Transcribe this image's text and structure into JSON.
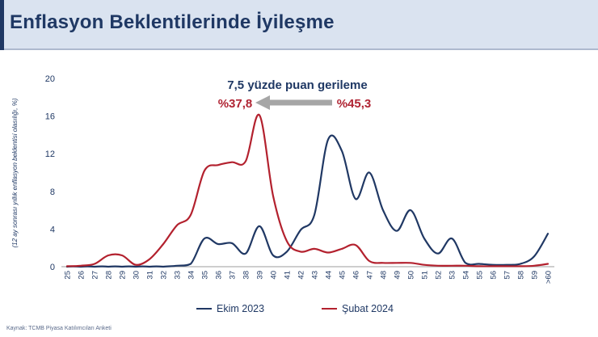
{
  "header": {
    "title": "Enflasyon Beklentilerinde İyileşme"
  },
  "annotation": {
    "headline": "7,5 yüzde puan gerileme",
    "left_value": "%37,8",
    "right_value": "%45,3"
  },
  "source": "Kaynak: TCMB Piyasa Katılımcıları Anketi",
  "colors": {
    "navy": "#1f3864",
    "red": "#b02433",
    "arrow_gray": "#a6a6a6",
    "header_bg": "#dae3f0",
    "axis_gray": "#b0b0b0"
  },
  "chart_data": {
    "type": "line",
    "title": "Enflasyon Beklentilerinde İyileşme",
    "xlabel": "",
    "ylabel": "(12 ay sonrası yıllık enflasyon beklentisi olasılığı, %)",
    "ylim": [
      0,
      20
    ],
    "yticks": [
      0,
      4,
      8,
      12,
      16,
      20
    ],
    "grid": false,
    "legend_position": "bottom",
    "categories": [
      "25",
      "26",
      "27",
      "28",
      "29",
      "30",
      "31",
      "32",
      "33",
      "34",
      "35",
      "36",
      "37",
      "38",
      "39",
      "40",
      "41",
      "42",
      "43",
      "44",
      "45",
      "46",
      "47",
      "48",
      "49",
      "50",
      "51",
      "52",
      "53",
      "54",
      "55",
      "56",
      "57",
      "58",
      "59",
      ">60"
    ],
    "series": [
      {
        "name": "Ekim 2023",
        "color": "#203864",
        "values": [
          0,
          0,
          0,
          0,
          0,
          0,
          0,
          0,
          0.1,
          0.3,
          3.0,
          2.4,
          2.5,
          1.4,
          4.3,
          1.2,
          1.6,
          3.9,
          5.5,
          13.5,
          12.3,
          7.2,
          10.0,
          6.0,
          3.8,
          6.0,
          3.0,
          1.4,
          3.0,
          0.4,
          0.3,
          0.2,
          0.2,
          0.3,
          1.1,
          3.5
        ]
      },
      {
        "name": "Şubat 2024",
        "color": "#b3212e",
        "values": [
          0.05,
          0.1,
          0.3,
          1.2,
          1.2,
          0.2,
          0.8,
          2.4,
          4.4,
          5.5,
          10.2,
          10.8,
          11.1,
          11.2,
          16.1,
          7.5,
          2.7,
          1.6,
          1.9,
          1.5,
          1.9,
          2.3,
          0.6,
          0.4,
          0.4,
          0.4,
          0.2,
          0.1,
          0.1,
          0.1,
          0.05,
          0.05,
          0.05,
          0.05,
          0.1,
          0.3
        ]
      }
    ],
    "annotations": {
      "headline": "7,5 yüzde puan gerileme",
      "subat_mean": "%37,8",
      "ekim_mean": "%45,3",
      "arrow_direction": "left"
    }
  }
}
